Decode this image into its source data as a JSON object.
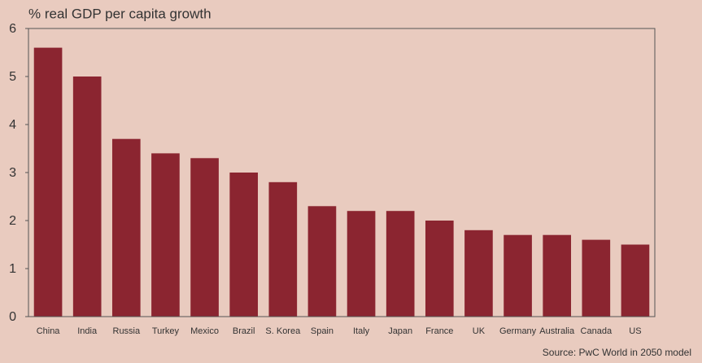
{
  "chart_data": {
    "type": "bar",
    "y_label": "% real GDP per capita growth",
    "source": "Source: PwC World in 2050 model",
    "categories": [
      "China",
      "India",
      "Russia",
      "Turkey",
      "Mexico",
      "Brazil",
      "S. Korea",
      "Spain",
      "Italy",
      "Japan",
      "France",
      "UK",
      "Germany",
      "Australia",
      "Canada",
      "US"
    ],
    "values": [
      5.6,
      5.0,
      3.7,
      3.4,
      3.3,
      3.0,
      2.8,
      2.3,
      2.2,
      2.2,
      2.0,
      1.8,
      1.7,
      1.7,
      1.6,
      1.5
    ],
    "color": "#8b2530",
    "ylim": [
      0,
      6
    ],
    "yticks": [
      0,
      1,
      2,
      3,
      4,
      5,
      6
    ],
    "grid": false
  }
}
